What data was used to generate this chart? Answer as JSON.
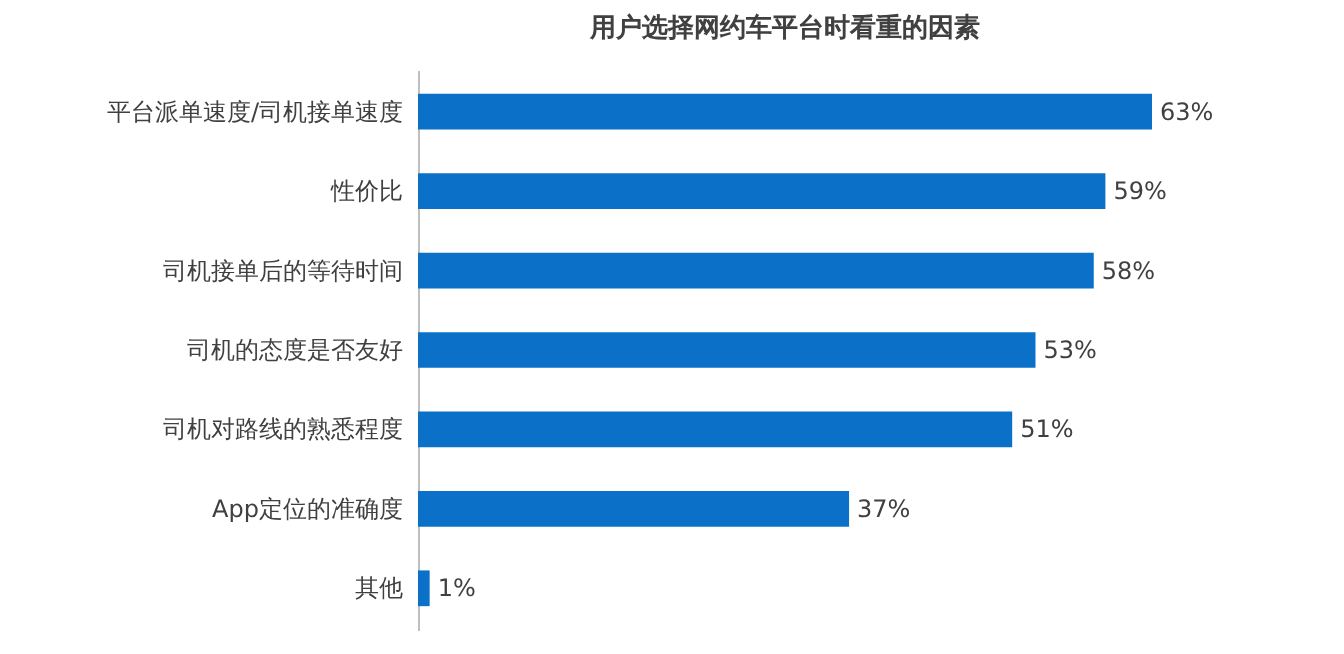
{
  "chart_data": {
    "type": "bar",
    "orientation": "horizontal",
    "title": "用户选择网约车平台时看重的因素",
    "categories": [
      "平台派单速度/司机接单速度",
      "性价比",
      "司机接单后的等待时间",
      "司机的态度是否友好",
      "司机对路线的熟悉程度",
      "App定位的准确度",
      "其他"
    ],
    "values": [
      63,
      59,
      58,
      53,
      51,
      37,
      1
    ],
    "value_labels": [
      "63%",
      "59%",
      "58%",
      "53%",
      "51%",
      "37%",
      "1%"
    ],
    "color": "#0a70c8"
  }
}
